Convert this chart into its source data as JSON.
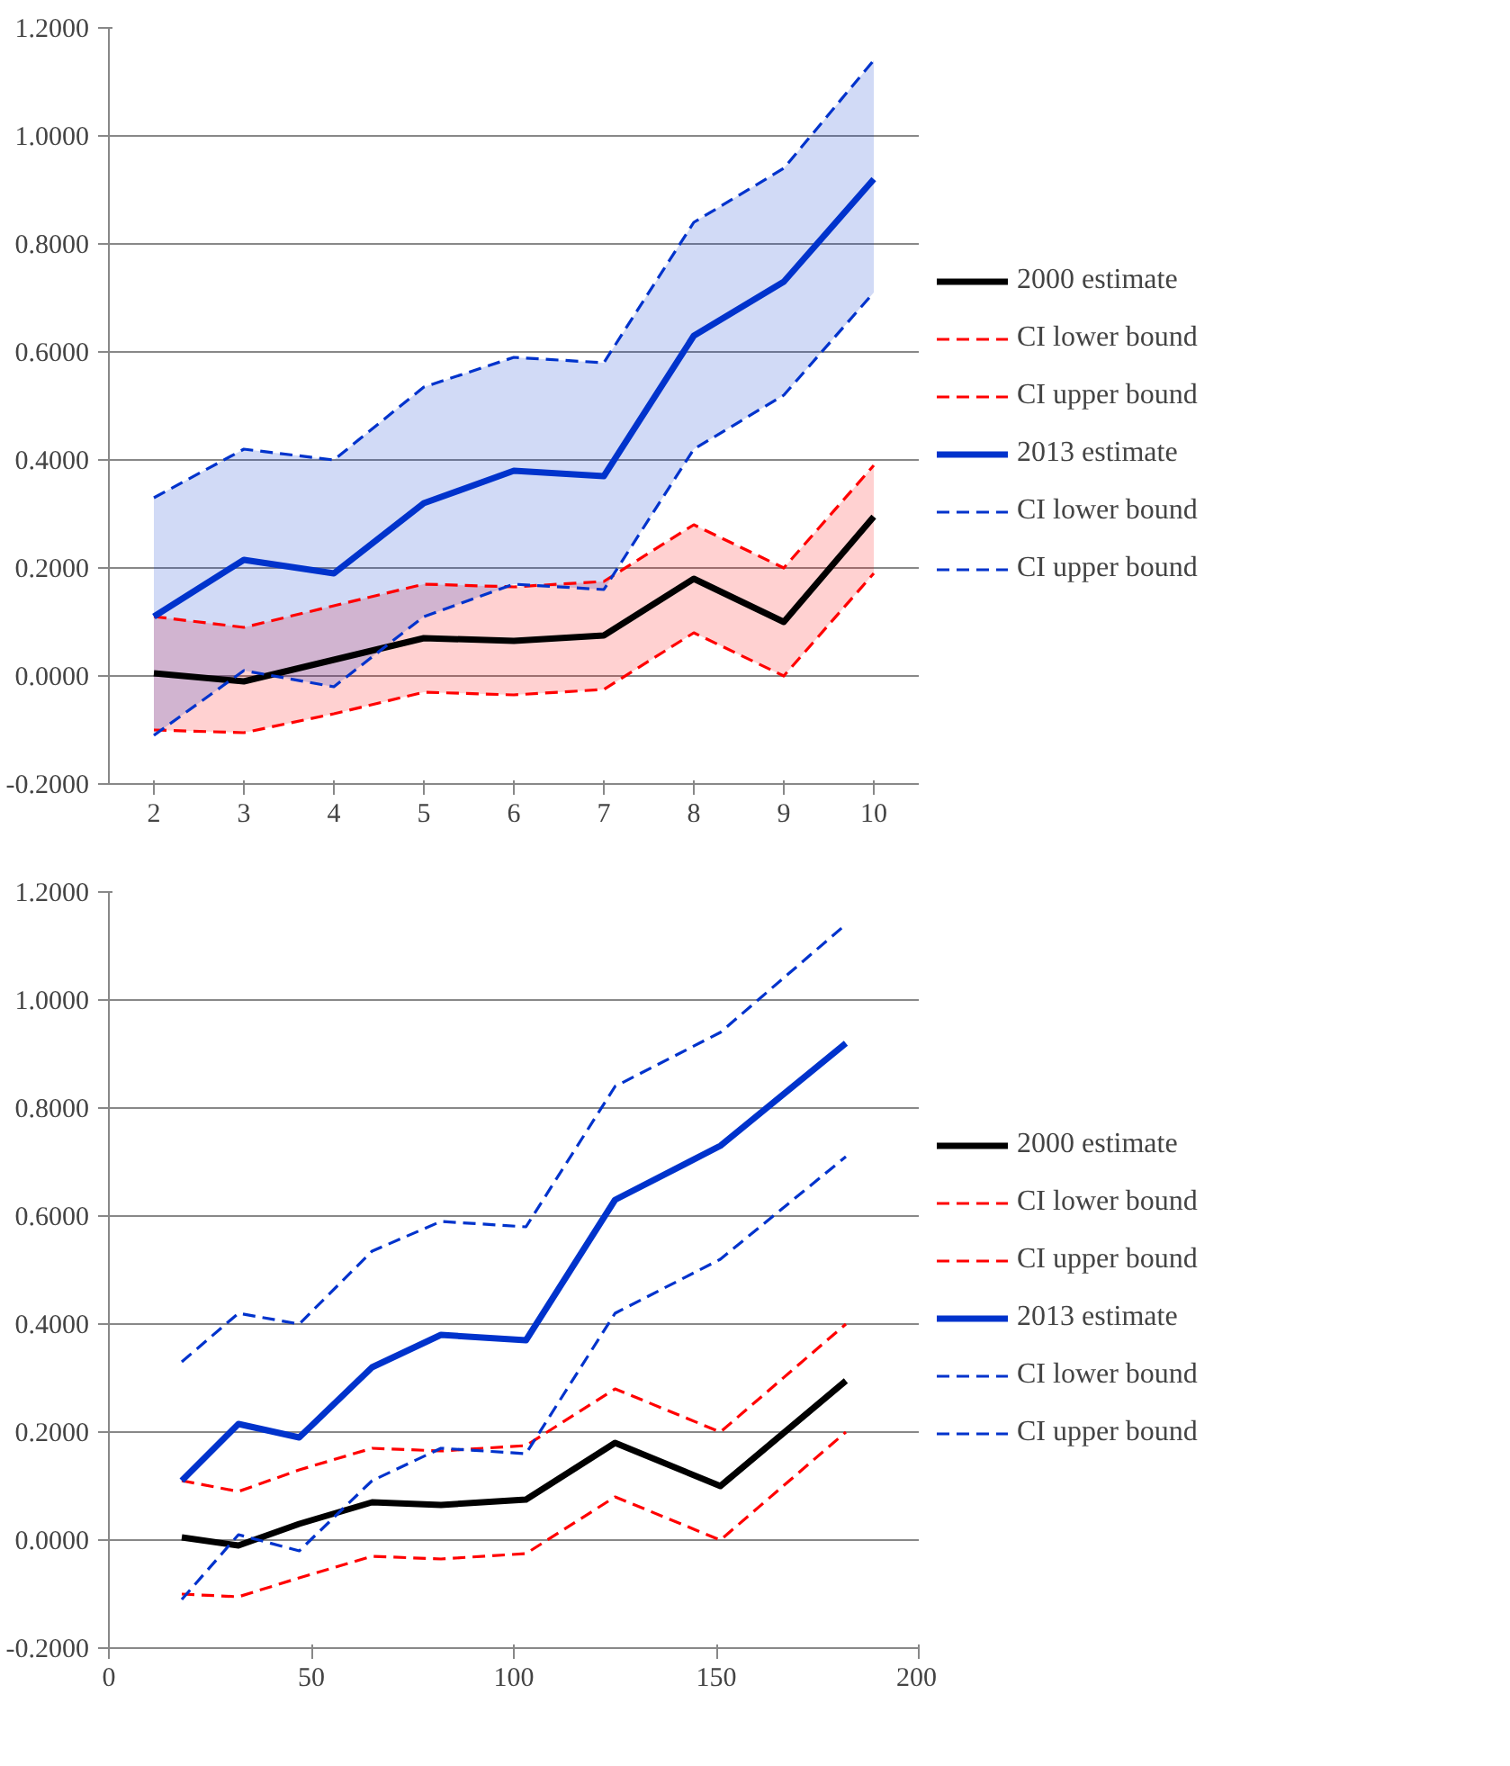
{
  "chart_data": [
    {
      "type": "line",
      "categories": [
        "2",
        "3",
        "4",
        "5",
        "6",
        "7",
        "8",
        "9",
        "10"
      ],
      "ylim": [
        -0.2,
        1.2
      ],
      "yticks": [
        {
          "value": -0.2,
          "label": "-0.2000"
        },
        {
          "value": 0,
          "label": "0.0000"
        },
        {
          "value": 0.2,
          "label": "0.2000"
        },
        {
          "value": 0.4,
          "label": "0.4000"
        },
        {
          "value": 0.6,
          "label": "0.6000"
        },
        {
          "value": 0.8,
          "label": "0.8000"
        },
        {
          "value": 1.0,
          "label": "1.0000"
        },
        {
          "value": 1.2,
          "label": "1.2000"
        }
      ],
      "grid": "y",
      "legend": "right",
      "series": [
        {
          "name": "2000 estimate",
          "color": "#000000",
          "line_style": "solid",
          "values": [
            0.005,
            -0.01,
            0.03,
            0.07,
            0.065,
            0.075,
            0.18,
            0.1,
            0.295
          ]
        },
        {
          "name": "CI lower bound",
          "color": "#ff0000",
          "line_style": "dashed",
          "values": [
            -0.1,
            -0.105,
            -0.07,
            -0.03,
            -0.035,
            -0.025,
            0.08,
            0.0,
            0.19
          ],
          "lower": [
            -0.1,
            -0.105,
            -0.07,
            -0.03,
            -0.035,
            -0.025,
            0.08,
            0.0,
            0.19
          ],
          "upper": [
            0.11,
            0.09,
            0.13,
            0.17,
            0.165,
            0.175,
            0.28,
            0.2,
            0.39
          ]
        },
        {
          "name": "CI upper bound",
          "color": "#ff0000",
          "line_style": "dashed",
          "values": [
            0.11,
            0.09,
            0.13,
            0.17,
            0.165,
            0.175,
            0.28,
            0.2,
            0.39
          ]
        },
        {
          "name": "2013 estimate",
          "color": "#0033cc",
          "line_style": "solid",
          "values": [
            0.11,
            0.215,
            0.19,
            0.32,
            0.38,
            0.37,
            0.63,
            0.73,
            0.92
          ]
        },
        {
          "name": "CI lower bound",
          "color": "#0033cc",
          "line_style": "dashed",
          "values": [
            -0.11,
            0.01,
            -0.02,
            0.11,
            0.17,
            0.16,
            0.42,
            0.52,
            0.71
          ],
          "lower": [
            -0.11,
            0.01,
            -0.02,
            0.11,
            0.17,
            0.16,
            0.42,
            0.52,
            0.71
          ],
          "upper": [
            0.33,
            0.42,
            0.4,
            0.535,
            0.59,
            0.58,
            0.84,
            0.94,
            1.14
          ]
        },
        {
          "name": "CI upper bound",
          "color": "#0033cc",
          "line_style": "dashed",
          "values": [
            0.33,
            0.42,
            0.4,
            0.535,
            0.59,
            0.58,
            0.84,
            0.94,
            1.14
          ]
        }
      ]
    },
    {
      "type": "line",
      "x": [
        18,
        32,
        47,
        65,
        82,
        103,
        125,
        151,
        182
      ],
      "xlim": [
        0,
        200
      ],
      "xticks": [
        0,
        50,
        100,
        150,
        200
      ],
      "ylim": [
        -0.2,
        1.2
      ],
      "yticks": [
        {
          "value": -0.2,
          "label": "-0.2000"
        },
        {
          "value": 0,
          "label": "0.0000"
        },
        {
          "value": 0.2,
          "label": "0.2000"
        },
        {
          "value": 0.4,
          "label": "0.4000"
        },
        {
          "value": 0.6,
          "label": "0.6000"
        },
        {
          "value": 0.8,
          "label": "0.8000"
        },
        {
          "value": 1.0,
          "label": "1.0000"
        },
        {
          "value": 1.2,
          "label": "1.2000"
        }
      ],
      "grid": "y",
      "legend": "right",
      "series": [
        {
          "name": "2000 estimate",
          "color": "#000000",
          "line_style": "solid",
          "values": [
            0.005,
            -0.01,
            0.03,
            0.07,
            0.065,
            0.075,
            0.18,
            0.1,
            0.295
          ]
        },
        {
          "name": "CI lower bound",
          "color": "#ff0000",
          "line_style": "dashed",
          "values": [
            -0.1,
            -0.105,
            -0.07,
            -0.03,
            -0.035,
            -0.025,
            0.08,
            0.0,
            0.2
          ]
        },
        {
          "name": "CI upper bound",
          "color": "#ff0000",
          "line_style": "dashed",
          "values": [
            0.11,
            0.09,
            0.13,
            0.17,
            0.165,
            0.175,
            0.28,
            0.2,
            0.4
          ]
        },
        {
          "name": "2013 estimate",
          "color": "#0033cc",
          "line_style": "solid",
          "values": [
            0.11,
            0.215,
            0.19,
            0.32,
            0.38,
            0.37,
            0.63,
            0.73,
            0.92
          ]
        },
        {
          "name": "CI lower bound",
          "color": "#0033cc",
          "line_style": "dashed",
          "values": [
            -0.11,
            0.01,
            -0.02,
            0.11,
            0.17,
            0.16,
            0.42,
            0.52,
            0.71
          ]
        },
        {
          "name": "CI upper bound",
          "color": "#0033cc",
          "line_style": "dashed",
          "values": [
            0.33,
            0.42,
            0.4,
            0.535,
            0.59,
            0.58,
            0.84,
            0.94,
            1.14
          ]
        }
      ]
    }
  ]
}
